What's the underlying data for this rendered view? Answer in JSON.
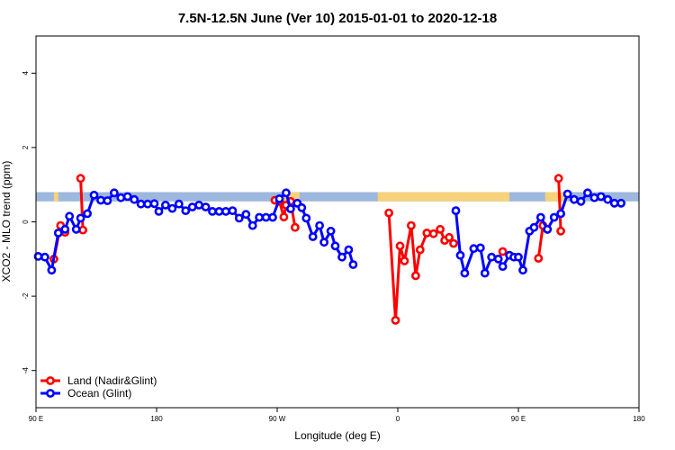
{
  "chart_data": {
    "type": "line",
    "title": "7.5N-12.5N June (Ver 10)   2015-01-01 to 2020-12-18",
    "xlabel": "Longitude (deg E)",
    "ylabel": "XCO2 - MLO trend (ppm)",
    "xlim": [
      -90,
      180
    ],
    "ylim": [
      -5,
      5
    ],
    "x_ticks": [
      {
        "value": -90,
        "label": "90 E"
      },
      {
        "value": -36,
        "label": "180"
      },
      {
        "value": 18,
        "label": "90 W"
      },
      {
        "value": 72,
        "label": "0"
      },
      {
        "value": 126,
        "label": "90 E"
      },
      {
        "value": 180,
        "label": "180"
      }
    ],
    "y_ticks": [
      -4,
      -2,
      0,
      2,
      4
    ],
    "grid": false,
    "legend_position": "bottom-left",
    "land_band": {
      "y_range": [
        0.55,
        0.8
      ],
      "color": "#9db7dd",
      "land_color": "#f6d27c",
      "land_x_ranges": [
        [
          -82,
          -80
        ],
        [
          20,
          28
        ],
        [
          63,
          122
        ],
        [
          138,
          148
        ]
      ]
    },
    "series": [
      {
        "name": "Land (Nadir&Glint)",
        "color": "#ff0000",
        "segments": [
          [
            [
              -82,
              -1.0
            ],
            [
              -79,
              -0.1
            ],
            [
              -77,
              -0.28
            ]
          ],
          [
            [
              -70,
              1.17
            ],
            [
              -69,
              -0.22
            ]
          ],
          [
            [
              17,
              0.58
            ],
            [
              19,
              0.55
            ],
            [
              21,
              0.13
            ],
            [
              22,
              0.45
            ],
            [
              24,
              0.55
            ],
            [
              26,
              -0.15
            ]
          ],
          [
            [
              68,
              0.24
            ],
            [
              71,
              -2.65
            ],
            [
              73,
              -0.65
            ],
            [
              75,
              -1.05
            ],
            [
              78,
              -0.1
            ],
            [
              80,
              -1.45
            ],
            [
              82,
              -0.75
            ],
            [
              85,
              -0.3
            ],
            [
              88,
              -0.32
            ],
            [
              91,
              -0.2
            ],
            [
              93,
              -0.5
            ],
            [
              95,
              -0.42
            ],
            [
              97,
              -0.58
            ]
          ],
          [
            [
              119,
              -0.8
            ]
          ],
          [
            [
              135,
              -0.98
            ],
            [
              137,
              -0.1
            ],
            [
              139,
              -0.2
            ]
          ],
          [
            [
              144,
              1.17
            ],
            [
              145,
              -0.25
            ]
          ]
        ]
      },
      {
        "name": "Ocean (Glint)",
        "color": "#0000ff",
        "segments": [
          [
            [
              -89,
              -0.93
            ],
            [
              -86,
              -0.95
            ],
            [
              -83,
              -1.3
            ],
            [
              -80,
              -0.3
            ],
            [
              -77,
              -0.2
            ],
            [
              -75,
              0.15
            ],
            [
              -72,
              -0.2
            ],
            [
              -70,
              0.1
            ],
            [
              -67,
              0.22
            ],
            [
              -64,
              0.72
            ],
            [
              -61,
              0.58
            ],
            [
              -58,
              0.57
            ],
            [
              -55,
              0.78
            ],
            [
              -52,
              0.65
            ],
            [
              -49,
              0.68
            ],
            [
              -46,
              0.6
            ],
            [
              -43,
              0.48
            ],
            [
              -40,
              0.48
            ],
            [
              -37,
              0.49
            ],
            [
              -35,
              0.28
            ],
            [
              -32,
              0.45
            ],
            [
              -29,
              0.36
            ],
            [
              -26,
              0.48
            ],
            [
              -23,
              0.3
            ],
            [
              -20,
              0.4
            ],
            [
              -17,
              0.45
            ],
            [
              -14,
              0.4
            ],
            [
              -11,
              0.28
            ],
            [
              -8,
              0.28
            ],
            [
              -5,
              0.28
            ],
            [
              -2,
              0.3
            ],
            [
              1,
              0.1
            ],
            [
              4,
              0.2
            ],
            [
              7,
              -0.1
            ],
            [
              10,
              0.12
            ],
            [
              13,
              0.12
            ],
            [
              16,
              0.12
            ],
            [
              19,
              0.62
            ],
            [
              22,
              0.78
            ],
            [
              24,
              0.35
            ],
            [
              27,
              0.5
            ],
            [
              29,
              0.38
            ],
            [
              31,
              0.1
            ],
            [
              34,
              -0.4
            ],
            [
              37,
              -0.1
            ],
            [
              39,
              -0.55
            ],
            [
              42,
              -0.25
            ],
            [
              44,
              -0.65
            ],
            [
              47,
              -0.95
            ],
            [
              50,
              -0.75
            ],
            [
              52,
              -1.15
            ]
          ],
          [
            [
              98,
              0.3
            ],
            [
              100,
              -0.9
            ],
            [
              102,
              -1.38
            ],
            [
              106,
              -0.72
            ],
            [
              109,
              -0.7
            ],
            [
              111,
              -1.38
            ],
            [
              114,
              -0.95
            ],
            [
              117,
              -1.0
            ],
            [
              119,
              -1.2
            ],
            [
              122,
              -0.9
            ],
            [
              124,
              -0.95
            ],
            [
              126,
              -0.95
            ],
            [
              128,
              -1.3
            ],
            [
              131,
              -0.25
            ],
            [
              133,
              -0.15
            ],
            [
              136,
              0.12
            ],
            [
              139,
              -0.2
            ],
            [
              142,
              0.12
            ],
            [
              145,
              0.22
            ],
            [
              148,
              0.75
            ],
            [
              151,
              0.6
            ],
            [
              154,
              0.55
            ],
            [
              157,
              0.78
            ],
            [
              160,
              0.65
            ],
            [
              163,
              0.68
            ],
            [
              166,
              0.6
            ],
            [
              169,
              0.5
            ],
            [
              172,
              0.5
            ]
          ]
        ]
      }
    ]
  }
}
